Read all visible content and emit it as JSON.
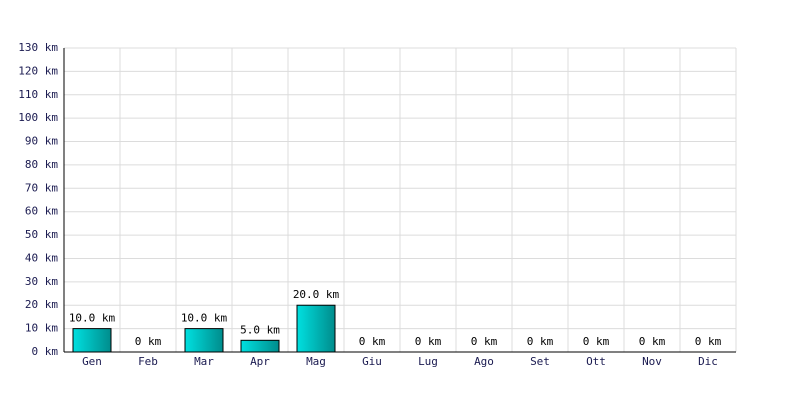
{
  "chart_data": {
    "type": "bar",
    "categories": [
      "Gen",
      "Feb",
      "Mar",
      "Apr",
      "Mag",
      "Giu",
      "Lug",
      "Ago",
      "Set",
      "Ott",
      "Nov",
      "Dic"
    ],
    "values": [
      10,
      0,
      10,
      5,
      20,
      0,
      0,
      0,
      0,
      0,
      0,
      0
    ],
    "value_labels": [
      "10.0 km",
      "0 km",
      "10.0 km",
      "5.0 km",
      "20.0 km",
      "0 km",
      "0 km",
      "0 km",
      "0 km",
      "0 km",
      "0 km",
      "0 km"
    ],
    "color": "#00e0e0",
    "ylim": [
      0,
      130
    ],
    "yticks": [
      {
        "value": 0,
        "label": "0 km"
      },
      {
        "value": 10,
        "label": "10 km"
      },
      {
        "value": 20,
        "label": "20 km"
      },
      {
        "value": 30,
        "label": "30 km"
      },
      {
        "value": 40,
        "label": "40 km"
      },
      {
        "value": 50,
        "label": "50 km"
      },
      {
        "value": 60,
        "label": "60 km"
      },
      {
        "value": 70,
        "label": "70 km"
      },
      {
        "value": 80,
        "label": "80 km"
      },
      {
        "value": 90,
        "label": "90 km"
      },
      {
        "value": 100,
        "label": "100 km"
      },
      {
        "value": 110,
        "label": "110 km"
      },
      {
        "value": 120,
        "label": "120 km"
      },
      {
        "value": 130,
        "label": "130 km"
      }
    ],
    "grid": true
  }
}
